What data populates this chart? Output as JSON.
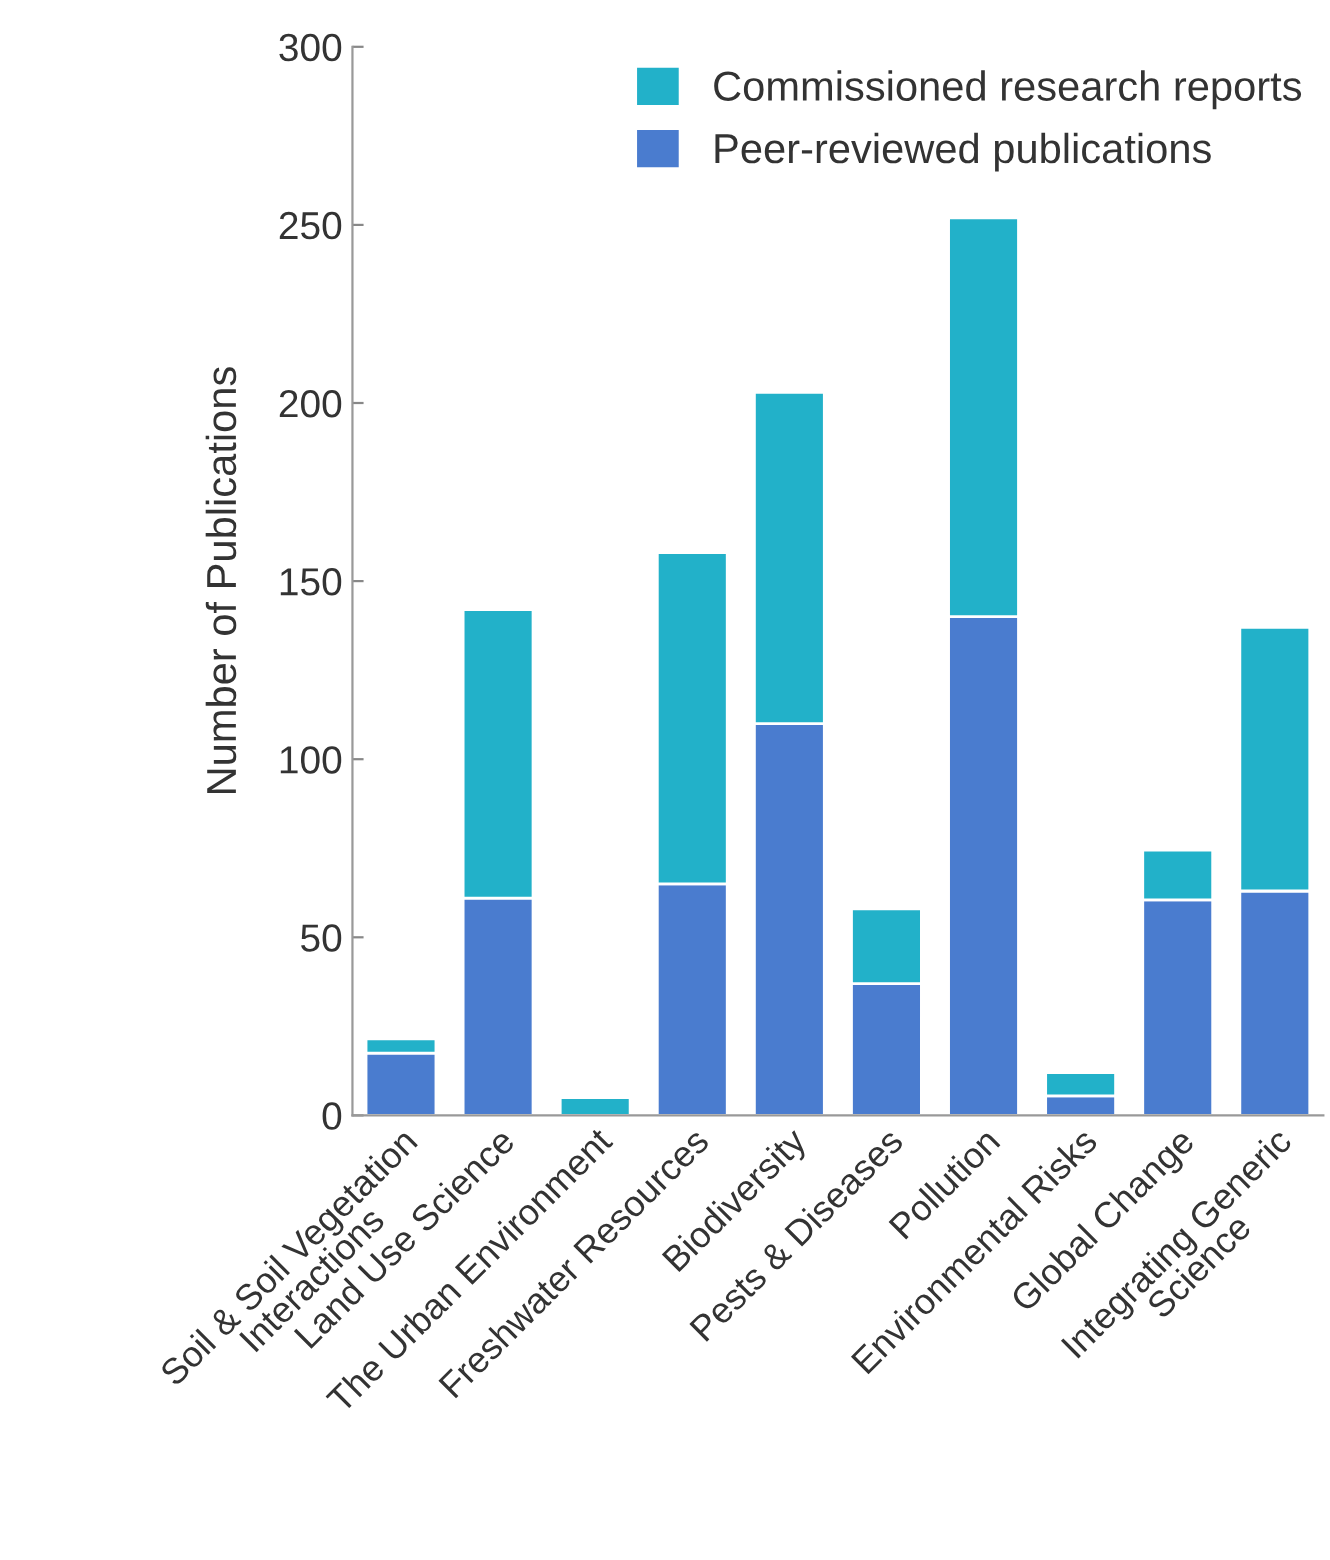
{
  "chart_data": {
    "type": "bar",
    "stacked": true,
    "ylabel": "Number of Publications",
    "categories": [
      "Soil & Soil Vegetation\nInteractions",
      "Land Use Science",
      "The Urban Environment",
      "Freshwater Resources",
      "Biodiversity",
      "Pests & Diseases",
      "Pollution",
      "Environmental Risks",
      "Global Change",
      "Integrating Generic\nScience"
    ],
    "series": [
      {
        "name": "Peer-reviewed publications",
        "color": "#4a7ccf",
        "values": [
          17.5,
          61,
          0,
          65,
          110,
          37,
          140,
          5.5,
          60.5,
          63
        ]
      },
      {
        "name": "Commissioned research reports",
        "color": "#22b1c9",
        "values": [
          4,
          81,
          5,
          93,
          93,
          21,
          112,
          6.5,
          14,
          74
        ]
      }
    ],
    "ylim": [
      0,
      300
    ],
    "yticks": [
      0,
      50,
      100,
      150,
      200,
      250,
      300
    ],
    "grid": false,
    "legend": "top right"
  }
}
